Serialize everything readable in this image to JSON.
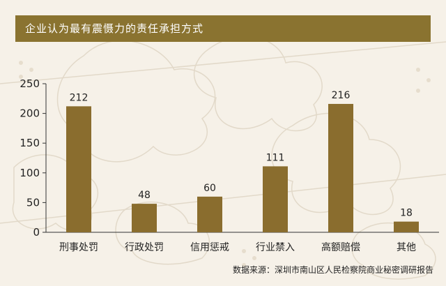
{
  "title": "企业认为最有震慑力的责任承担方式",
  "source": "数据来源：深圳市南山区人民检察院商业秘密调研报告",
  "colors": {
    "bar": "#8a6d2e",
    "title_bg": "#8a7330",
    "axis": "#333333"
  },
  "chart_data": {
    "type": "bar",
    "title": "企业认为最有震慑力的责任承担方式",
    "xlabel": "",
    "ylabel": "",
    "categories": [
      "刑事处罚",
      "行政处罚",
      "信用惩戒",
      "行业禁入",
      "高额赔偿",
      "其他"
    ],
    "values": [
      212,
      48,
      60,
      111,
      216,
      18
    ],
    "ylim": [
      0,
      250
    ],
    "yticks": [
      0,
      50,
      100,
      150,
      200,
      250
    ],
    "grid": false,
    "legend": "none"
  }
}
